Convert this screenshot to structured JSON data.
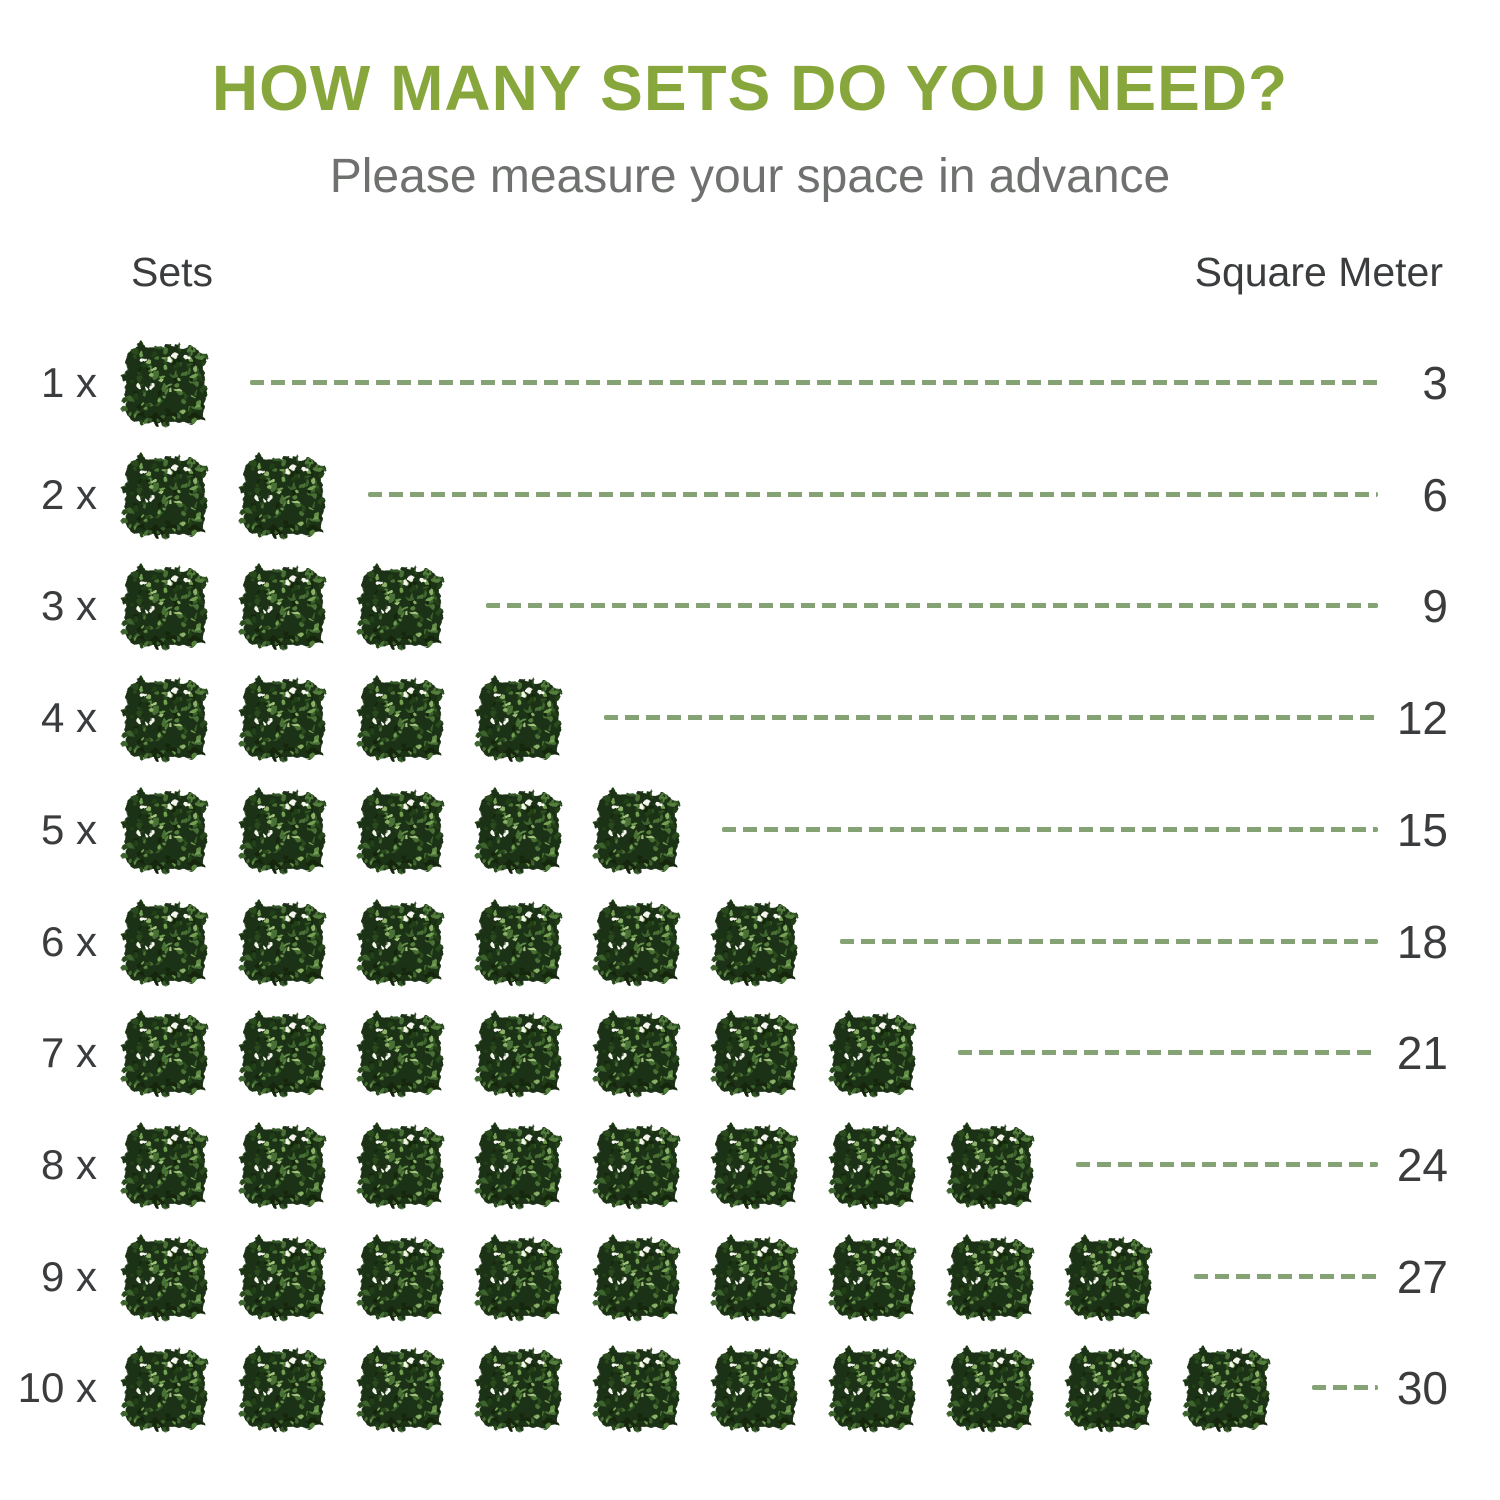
{
  "title": "HOW MANY SETS DO YOU NEED?",
  "subtitle": "Please measure your space in advance",
  "columns": {
    "left": "Sets",
    "right": "Square Meter"
  },
  "rows": [
    {
      "sets_label": "1 x",
      "tiles": 1,
      "square_meters": "3"
    },
    {
      "sets_label": "2 x",
      "tiles": 2,
      "square_meters": "6"
    },
    {
      "sets_label": "3 x",
      "tiles": 3,
      "square_meters": "9"
    },
    {
      "sets_label": "4 x",
      "tiles": 4,
      "square_meters": "12"
    },
    {
      "sets_label": "5 x",
      "tiles": 5,
      "square_meters": "15"
    },
    {
      "sets_label": "6 x",
      "tiles": 6,
      "square_meters": "18"
    },
    {
      "sets_label": "7 x",
      "tiles": 7,
      "square_meters": "21"
    },
    {
      "sets_label": "8 x",
      "tiles": 8,
      "square_meters": "24"
    },
    {
      "sets_label": "9 x",
      "tiles": 9,
      "square_meters": "27"
    },
    {
      "sets_label": "10 x",
      "tiles": 10,
      "square_meters": "30"
    }
  ],
  "icons": {
    "tile": "hedge-tile-icon"
  },
  "colors": {
    "title_green": "#87a73c",
    "subtitle_gray": "#6f716f",
    "text_dark": "#3a3c3e",
    "dash_green": "#85a275",
    "hedge_dark": "#1b3013",
    "hedge_light": "#73a053",
    "flower_white": "#f4f5ec"
  },
  "chart_data": {
    "type": "table",
    "title": "HOW MANY SETS DO YOU NEED?",
    "subtitle": "Please measure your space in advance",
    "columns": [
      "Sets",
      "Square Meter"
    ],
    "sets": [
      1,
      2,
      3,
      4,
      5,
      6,
      7,
      8,
      9,
      10
    ],
    "square_meters": [
      3,
      6,
      9,
      12,
      15,
      18,
      21,
      24,
      27,
      30
    ],
    "sqm_per_set": 3,
    "legend_position": "none",
    "grid": false
  }
}
